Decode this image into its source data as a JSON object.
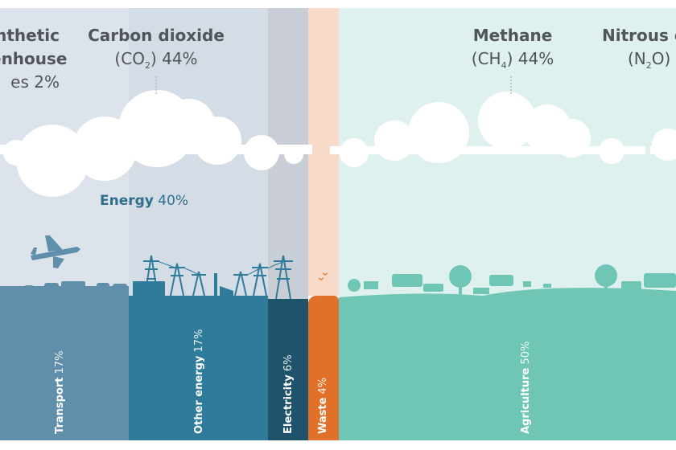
{
  "gases": [
    {
      "name": "Synthetic greenhouse gases",
      "lines": [
        "nthetic",
        "enhouse",
        "es"
      ],
      "percent": "2%"
    },
    {
      "name": "Carbon dioxide",
      "formula_main": "(CO",
      "formula_sub": "2",
      "formula_end": ")",
      "percent": "44%"
    },
    {
      "name": "Methane",
      "formula_main": "(CH",
      "formula_sub": "4",
      "formula_end": ")",
      "percent": "44%"
    },
    {
      "name": "Nitrous o",
      "formula_main": "(N",
      "formula_sub": "2",
      "formula_end": "O)",
      "percent": ""
    }
  ],
  "energy": {
    "label": "Energy",
    "percent": "40%"
  },
  "sectors": [
    {
      "label": "Transport",
      "percent": "17%",
      "color": "#5f8fab"
    },
    {
      "label": "Other energy",
      "percent": "17%",
      "color": "#2f7b9a"
    },
    {
      "label": "Electricity",
      "percent": "6%",
      "color": "#1f536b"
    },
    {
      "label": "Waste",
      "percent": "4%",
      "color": "#e0702a"
    },
    {
      "label": "Agriculture",
      "percent": "50%",
      "color": "#6fc6b4"
    }
  ]
}
